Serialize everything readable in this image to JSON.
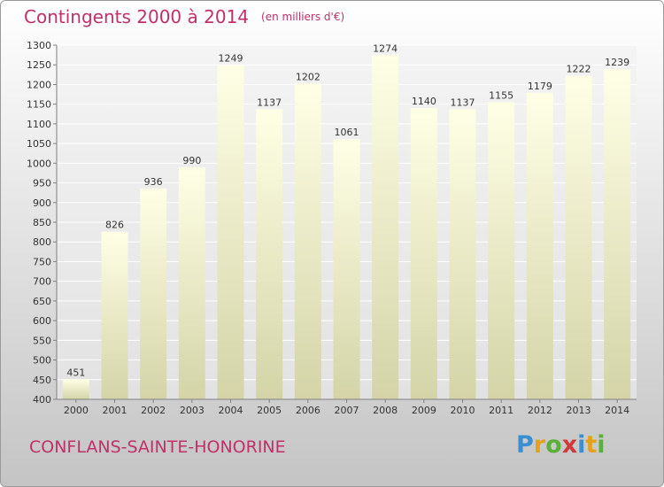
{
  "header": {
    "title": "Contingents 2000 à 2014",
    "unit": "(en milliers d'€)"
  },
  "footer": {
    "city": "CONFLANS-SAINTE-HONORINE",
    "logo": "Proxiti"
  },
  "colors": {
    "title": "#c0306a",
    "bar_top": "#ffffe6",
    "bar_bottom": "#d4d4a8",
    "axis": "#808080"
  },
  "chart_data": {
    "type": "bar",
    "title": "Contingents 2000 à 2014",
    "subtitle": "(en milliers d'€)",
    "categories": [
      "2000",
      "2001",
      "2002",
      "2003",
      "2004",
      "2005",
      "2006",
      "2007",
      "2008",
      "2009",
      "2010",
      "2011",
      "2012",
      "2013",
      "2014"
    ],
    "values": [
      451,
      826,
      936,
      990,
      1249,
      1137,
      1202,
      1061,
      1274,
      1140,
      1137,
      1155,
      1179,
      1222,
      1239
    ],
    "xlabel": "",
    "ylabel": "",
    "ylim": [
      400,
      1300
    ],
    "yticks": [
      400,
      450,
      500,
      550,
      600,
      650,
      700,
      750,
      800,
      850,
      900,
      950,
      1000,
      1050,
      1100,
      1150,
      1200,
      1250,
      1300
    ],
    "grid": true,
    "legend": "none"
  }
}
